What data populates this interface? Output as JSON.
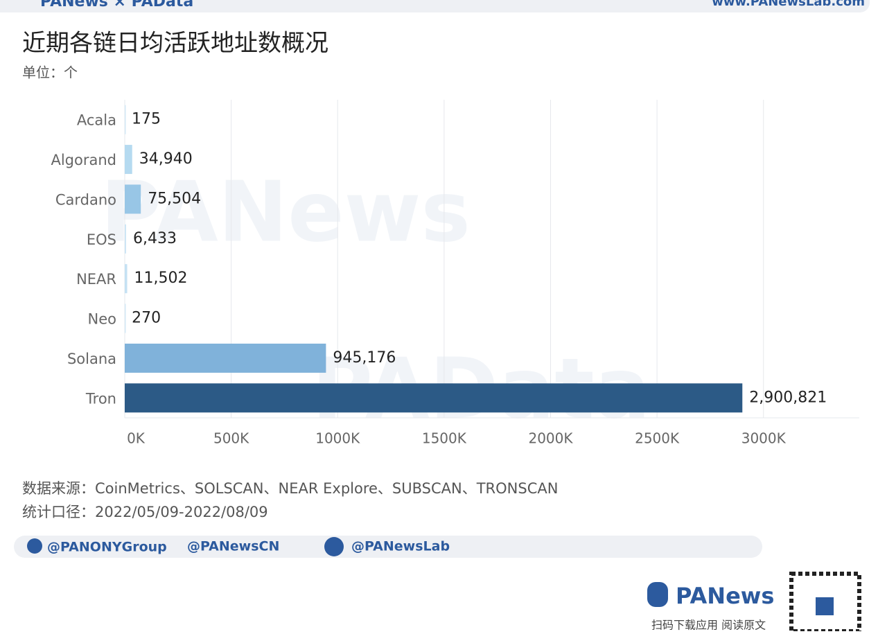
{
  "header": {
    "brand": "PANews × PAData",
    "url": "www.PANewsLab.com"
  },
  "chart_data": {
    "type": "hbar",
    "title": "近期各链日均活跃地址数概况",
    "subtitle": "单位：个",
    "categories": [
      "Acala",
      "Algorand",
      "Cardano",
      "EOS",
      "NEAR",
      "Neo",
      "Solana",
      "Tron"
    ],
    "values": [
      175,
      34940,
      75504,
      6433,
      11502,
      270,
      945176,
      2900821
    ],
    "value_labels": [
      "175",
      "34,940",
      "75,504",
      "6,433",
      "11,502",
      "270",
      "945,176",
      "2,900,821"
    ],
    "colors": [
      "#d3e8f6",
      "#b5daf0",
      "#98c6e6",
      "#cde5f5",
      "#c5e1f3",
      "#d3e8f6",
      "#80b2da",
      "#2c5a86"
    ],
    "xlim": [
      0,
      3450000
    ],
    "xticks": [
      {
        "value": 0,
        "label": "0K"
      },
      {
        "value": 500000,
        "label": "500K"
      },
      {
        "value": 1000000,
        "label": "1000K"
      },
      {
        "value": 1500000,
        "label": "1500K"
      },
      {
        "value": 2000000,
        "label": "2000K"
      },
      {
        "value": 2500000,
        "label": "2500K"
      },
      {
        "value": 3000000,
        "label": "3000K"
      }
    ],
    "grid": true
  },
  "watermarks": [
    "PANews",
    "PAData"
  ],
  "source": "数据来源：CoinMetrics、SOLSCAN、NEAR Explore、SUBSCAN、TRONSCAN",
  "period": "统计口径：2022/05/09-2022/08/09",
  "social": [
    "@PANONYGroup",
    "@PANewsCN",
    "@PANewsLab"
  ],
  "footer": {
    "brand": "PANews",
    "caption": "扫码下载应用 阅读原文"
  }
}
